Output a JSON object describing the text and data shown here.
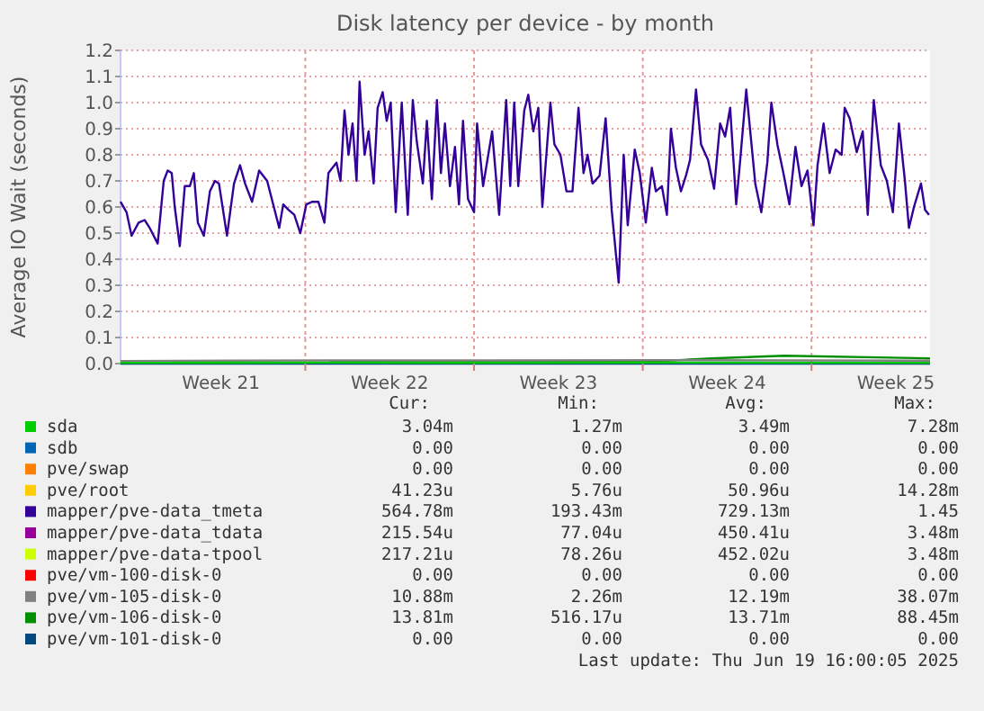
{
  "chart_data": {
    "type": "line",
    "title": "Disk latency per device - by month",
    "ylabel": "Average IO Wait (seconds)",
    "xlim": [
      "2025-05-18T08:00",
      "2025-06-20T22:00"
    ],
    "xticks": [
      {
        "value": "2025-05-22T12:00",
        "label": "Week 21"
      },
      {
        "value": "2025-05-29T12:00",
        "label": "Week 22"
      },
      {
        "value": "2025-06-05T12:00",
        "label": "Week 23"
      },
      {
        "value": "2025-06-12T12:00",
        "label": "Week 24"
      },
      {
        "value": "2025-06-19T12:00",
        "label": "Week 25"
      },
      {
        "value": "2025-05-26T00:00",
        "label": null
      },
      {
        "value": "2025-06-02T00:00",
        "label": null
      },
      {
        "value": "2025-06-09T00:00",
        "label": null
      },
      {
        "value": "2025-06-16T00:00",
        "label": null
      }
    ],
    "ylim": [
      0,
      1.2
    ],
    "yticks": [
      {
        "value": 0,
        "label": "0.0"
      },
      {
        "value": 0.1,
        "label": "0.1"
      },
      {
        "value": 0.2,
        "label": "0.2"
      },
      {
        "value": 0.3,
        "label": "0.3"
      },
      {
        "value": 0.4,
        "label": "0.4"
      },
      {
        "value": 0.5,
        "label": "0.5"
      },
      {
        "value": 0.6,
        "label": "0.6"
      },
      {
        "value": 0.7,
        "label": "0.7"
      },
      {
        "value": 0.8,
        "label": "0.8"
      },
      {
        "value": 0.9,
        "label": "0.9"
      },
      {
        "value": 1.0,
        "label": "1.0"
      },
      {
        "value": 1.1,
        "label": "1.1"
      },
      {
        "value": 1.2,
        "label": "1.2"
      }
    ],
    "grid": true,
    "legend": "bottom",
    "series": [
      {
        "name": "sda",
        "color": "#00cc00",
        "x": [
          "2025-05-18T08:00",
          "2025-05-26T22:00",
          "2025-06-02T15:00",
          "2025-06-09T19:00",
          "2025-06-20T22:00"
        ],
        "values": [
          0.003,
          0.004,
          0.003,
          0.004,
          0.003
        ]
      },
      {
        "name": "sdb",
        "color": "#0066b3"
      },
      {
        "name": "pve/swap",
        "color": "#ff8000"
      },
      {
        "name": "pve/root",
        "color": "#ffcc00"
      },
      {
        "name": "mapper/pve-data_tmeta",
        "color": "#330099",
        "x": [
          "2025-05-18T08:00",
          "2025-05-18T14:00",
          "2025-05-18T19:00",
          "2025-05-19T02:00",
          "2025-05-19T08:00",
          "2025-05-19T13:00",
          "2025-05-19T21:00",
          "2025-05-20T03:00",
          "2025-05-20T07:00",
          "2025-05-20T11:00",
          "2025-05-20T14:00",
          "2025-05-20T19:00",
          "2025-05-21T00:00",
          "2025-05-21T05:00",
          "2025-05-21T09:00",
          "2025-05-21T13:00",
          "2025-05-21T19:00",
          "2025-05-22T01:00",
          "2025-05-22T06:00",
          "2025-05-22T10:00",
          "2025-05-22T18:00",
          "2025-05-23T01:00",
          "2025-05-23T07:00",
          "2025-05-23T12:00",
          "2025-05-23T19:00",
          "2025-05-24T02:00",
          "2025-05-24T10:00",
          "2025-05-24T18:00",
          "2025-05-24T22:00",
          "2025-05-25T02:00",
          "2025-05-25T07:00",
          "2025-05-25T13:00",
          "2025-05-25T19:00",
          "2025-05-26T01:00",
          "2025-05-26T07:00",
          "2025-05-26T13:00",
          "2025-05-26T19:00",
          "2025-05-26T23:00",
          "2025-05-27T07:00",
          "2025-05-27T11:00",
          "2025-05-27T15:00",
          "2025-05-27T19:00",
          "2025-05-27T23:00",
          "2025-05-28T03:00",
          "2025-05-28T06:00",
          "2025-05-28T11:00",
          "2025-05-28T15:00",
          "2025-05-28T20:00",
          "2025-05-29T00:00",
          "2025-05-29T05:00",
          "2025-05-29T09:00",
          "2025-05-29T13:00",
          "2025-05-29T18:00",
          "2025-05-30T00:00",
          "2025-05-30T06:00",
          "2025-05-30T11:00",
          "2025-05-30T15:00",
          "2025-05-30T21:00",
          "2025-05-31T01:00",
          "2025-05-31T06:00",
          "2025-05-31T11:00",
          "2025-05-31T15:00",
          "2025-05-31T19:00",
          "2025-06-01T00:00",
          "2025-06-01T05:00",
          "2025-06-01T09:00",
          "2025-06-01T13:00",
          "2025-06-01T18:00",
          "2025-06-02T00:00",
          "2025-06-02T03:00",
          "2025-06-02T09:00",
          "2025-06-02T18:00",
          "2025-06-03T01:00",
          "2025-06-03T08:00",
          "2025-06-03T12:00",
          "2025-06-03T16:00",
          "2025-06-03T20:00",
          "2025-06-04T02:00",
          "2025-06-04T06:00",
          "2025-06-04T11:00",
          "2025-06-04T16:00",
          "2025-06-04T20:00",
          "2025-06-05T04:00",
          "2025-06-05T08:00",
          "2025-06-05T14:00",
          "2025-06-05T20:00",
          "2025-06-06T02:00",
          "2025-06-06T08:00",
          "2025-06-06T13:00",
          "2025-06-06T17:00",
          "2025-06-06T22:00",
          "2025-06-07T05:00",
          "2025-06-07T11:00",
          "2025-06-07T17:00",
          "2025-06-08T00:00",
          "2025-06-08T05:00",
          "2025-06-08T09:00",
          "2025-06-08T16:00",
          "2025-06-08T21:00",
          "2025-06-09T03:00",
          "2025-06-09T09:00",
          "2025-06-09T13:00",
          "2025-06-09T19:00",
          "2025-06-10T00:00",
          "2025-06-10T04:00",
          "2025-06-10T09:00",
          "2025-06-10T14:00",
          "2025-06-10T19:00",
          "2025-06-10T23:00",
          "2025-06-11T05:00",
          "2025-06-11T10:00",
          "2025-06-11T17:00",
          "2025-06-11T23:00",
          "2025-06-12T05:00",
          "2025-06-12T10:00",
          "2025-06-12T15:00",
          "2025-06-12T21:00",
          "2025-06-13T01:00",
          "2025-06-13T07:00",
          "2025-06-13T11:00",
          "2025-06-13T16:00",
          "2025-06-13T22:00",
          "2025-06-14T04:00",
          "2025-06-14T08:00",
          "2025-06-14T14:00",
          "2025-06-14T20:00",
          "2025-06-15T02:00",
          "2025-06-15T08:00",
          "2025-06-15T14:00",
          "2025-06-15T20:00",
          "2025-06-16T02:00",
          "2025-06-16T06:00",
          "2025-06-16T12:00",
          "2025-06-16T18:00",
          "2025-06-17T00:00",
          "2025-06-17T06:00",
          "2025-06-17T09:00",
          "2025-06-17T14:00",
          "2025-06-17T21:00",
          "2025-06-18T03:00",
          "2025-06-18T08:00",
          "2025-06-18T14:00",
          "2025-06-18T21:00",
          "2025-06-19T03:00",
          "2025-06-19T09:00",
          "2025-06-19T15:00",
          "2025-06-19T21:00",
          "2025-06-20T01:00",
          "2025-06-20T06:00",
          "2025-06-20T13:00",
          "2025-06-20T17:00",
          "2025-06-20T21:00"
        ],
        "values": [
          0.62,
          0.58,
          0.49,
          0.54,
          0.55,
          0.52,
          0.46,
          0.7,
          0.74,
          0.73,
          0.6,
          0.45,
          0.68,
          0.68,
          0.73,
          0.54,
          0.49,
          0.66,
          0.7,
          0.69,
          0.49,
          0.69,
          0.76,
          0.69,
          0.62,
          0.74,
          0.7,
          0.58,
          0.52,
          0.61,
          0.59,
          0.57,
          0.5,
          0.61,
          0.62,
          0.62,
          0.54,
          0.73,
          0.77,
          0.7,
          0.97,
          0.8,
          0.92,
          0.7,
          1.08,
          0.8,
          0.89,
          0.69,
          0.98,
          1.04,
          0.93,
          1.0,
          0.58,
          1.0,
          0.57,
          1.01,
          0.85,
          0.69,
          0.93,
          0.63,
          1.01,
          0.73,
          0.92,
          0.68,
          0.83,
          0.61,
          0.93,
          0.63,
          0.58,
          0.92,
          0.68,
          0.89,
          0.57,
          1.01,
          0.68,
          1.0,
          0.68,
          0.97,
          1.03,
          0.89,
          0.98,
          0.6,
          1.0,
          0.84,
          0.8,
          0.66,
          0.66,
          0.98,
          0.73,
          0.8,
          0.69,
          0.72,
          0.94,
          0.59,
          0.31,
          0.8,
          0.53,
          0.82,
          0.73,
          0.54,
          0.75,
          0.66,
          0.68,
          0.57,
          0.9,
          0.75,
          0.66,
          0.72,
          0.78,
          1.05,
          0.84,
          0.78,
          0.67,
          0.92,
          0.87,
          0.98,
          0.61,
          0.78,
          1.05,
          0.89,
          0.69,
          0.58,
          0.77,
          1.0,
          0.84,
          0.73,
          0.61,
          0.83,
          0.68,
          0.74,
          0.53,
          0.76,
          0.92,
          0.73,
          0.82,
          0.8,
          0.98,
          0.94,
          0.81,
          0.89,
          0.57,
          1.01,
          0.76,
          0.7,
          0.58,
          0.92,
          0.7,
          0.52,
          0.6,
          0.69,
          0.59,
          0.57
        ]
      },
      {
        "name": "mapper/pve-data_tdata",
        "color": "#990099"
      },
      {
        "name": "mapper/pve-data-tpool",
        "color": "#ccff00"
      },
      {
        "name": "pve/vm-100-disk-0",
        "color": "#ff0000"
      },
      {
        "name": "pve/vm-105-disk-0",
        "color": "#808080",
        "x": [
          "2025-05-18T08:00",
          "2025-05-26T22:00",
          "2025-06-02T15:00",
          "2025-06-09T19:00",
          "2025-06-20T22:00"
        ],
        "values": [
          0.01,
          0.012,
          0.012,
          0.013,
          0.011
        ]
      },
      {
        "name": "pve/vm-106-disk-0",
        "color": "#008f00",
        "x": [
          "2025-05-27T00:00",
          "2025-06-02T15:00",
          "2025-06-09T19:00",
          "2025-06-11T20:00",
          "2025-06-14T21:00",
          "2025-06-20T22:00"
        ],
        "values": [
          0.01,
          0.01,
          0.01,
          0.02,
          0.03,
          0.02
        ]
      },
      {
        "name": "pve/vm-101-disk-0",
        "color": "#00487d",
        "x": [
          "2025-05-18T08:00",
          "2025-06-20T22:00"
        ],
        "values": [
          0,
          0
        ]
      }
    ],
    "annotations": [
      "Cur:",
      "Min:",
      "Avg:",
      "Max:",
      "3.04m",
      "1.27m",
      "3.49m",
      "7.28m",
      "0.00",
      "0.00",
      "0.00",
      "0.00",
      "0.00",
      "0.00",
      "0.00",
      "0.00",
      "41.23u",
      "5.76u",
      "50.96u",
      "14.28m",
      "564.78m",
      "193.43m",
      "729.13m",
      "1.45",
      "215.54u",
      "77.04u",
      "450.41u",
      "3.48m",
      "217.21u",
      "78.26u",
      "452.02u",
      "3.48m",
      "0.00",
      "0.00",
      "0.00",
      "0.00",
      "10.88m",
      "2.26m",
      "12.19m",
      "38.07m",
      "13.81m",
      "516.17u",
      "13.71m",
      "88.45m",
      "0.00",
      "0.00",
      "0.00",
      "0.00",
      "Last update: Thu Jun 19 16:00:05 2025"
    ]
  }
}
